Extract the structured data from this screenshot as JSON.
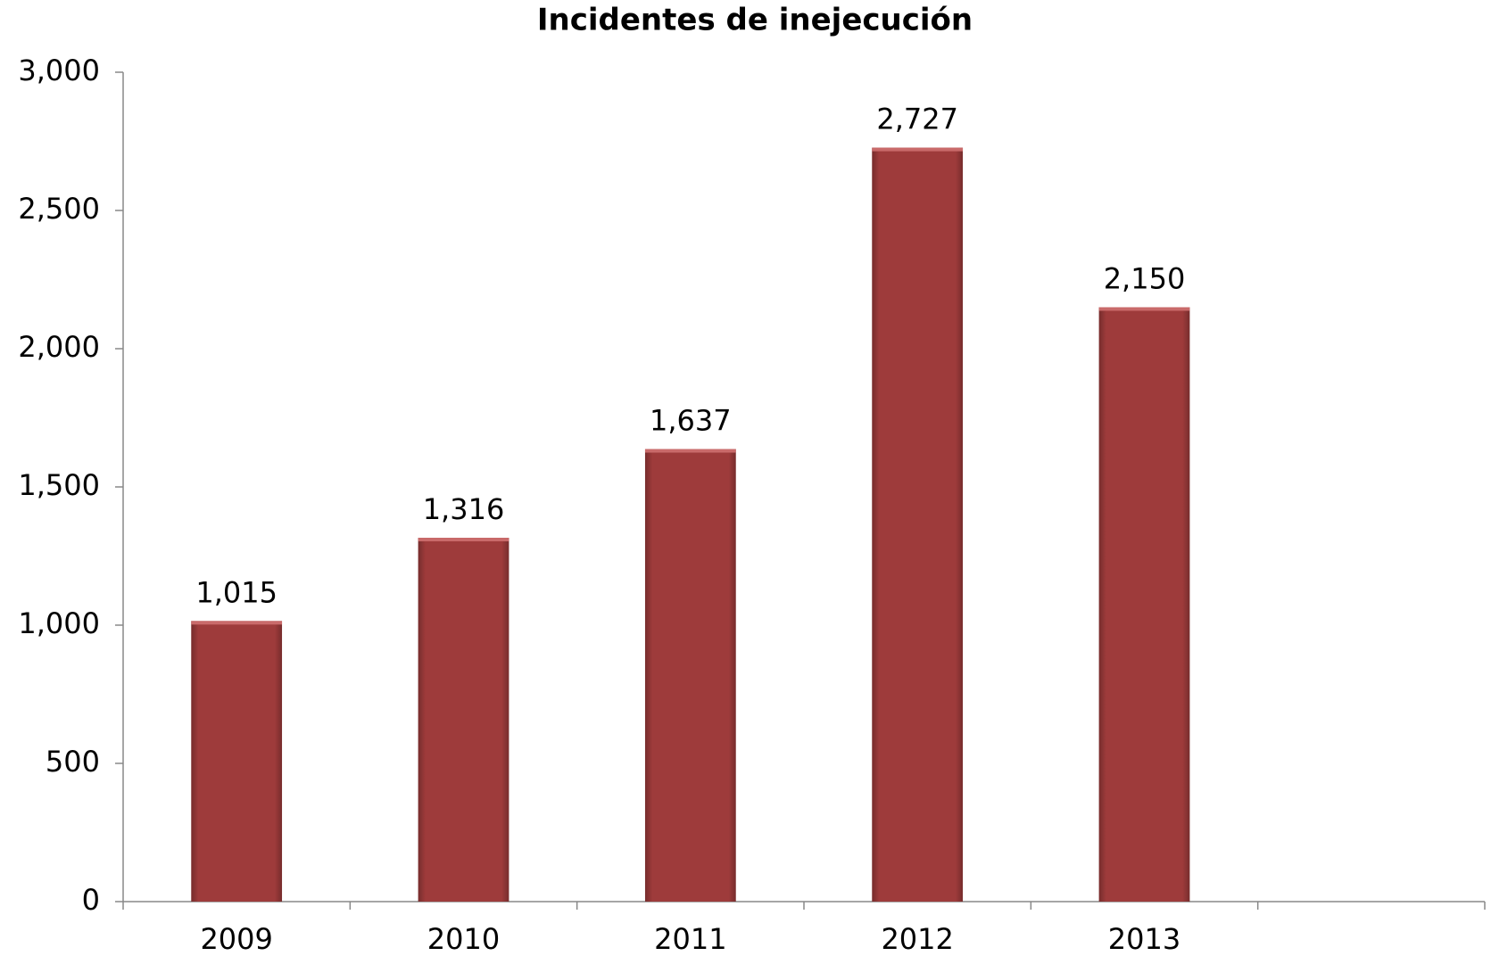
{
  "chart_data": {
    "type": "bar",
    "title": "Incidentes de inejecución",
    "categories": [
      "2009",
      "2010",
      "2011",
      "2012",
      "2013",
      null
    ],
    "values": [
      1015,
      1316,
      1637,
      2727,
      2150,
      null
    ],
    "value_labels": [
      "1,015",
      "1,316",
      "1,637",
      "2,727",
      "2,150",
      null
    ],
    "color": "#9e3b3b",
    "ylim": [
      0,
      3000
    ],
    "yticks": [
      0,
      500,
      {
        "value": 1000,
        "label": "1,000"
      },
      {
        "value": 1500,
        "label": "1,500"
      },
      {
        "value": 2000,
        "label": "2,000"
      },
      {
        "value": 2500,
        "label": "2,500"
      },
      {
        "value": 3000,
        "label": "3,000"
      }
    ],
    "grid": false
  }
}
